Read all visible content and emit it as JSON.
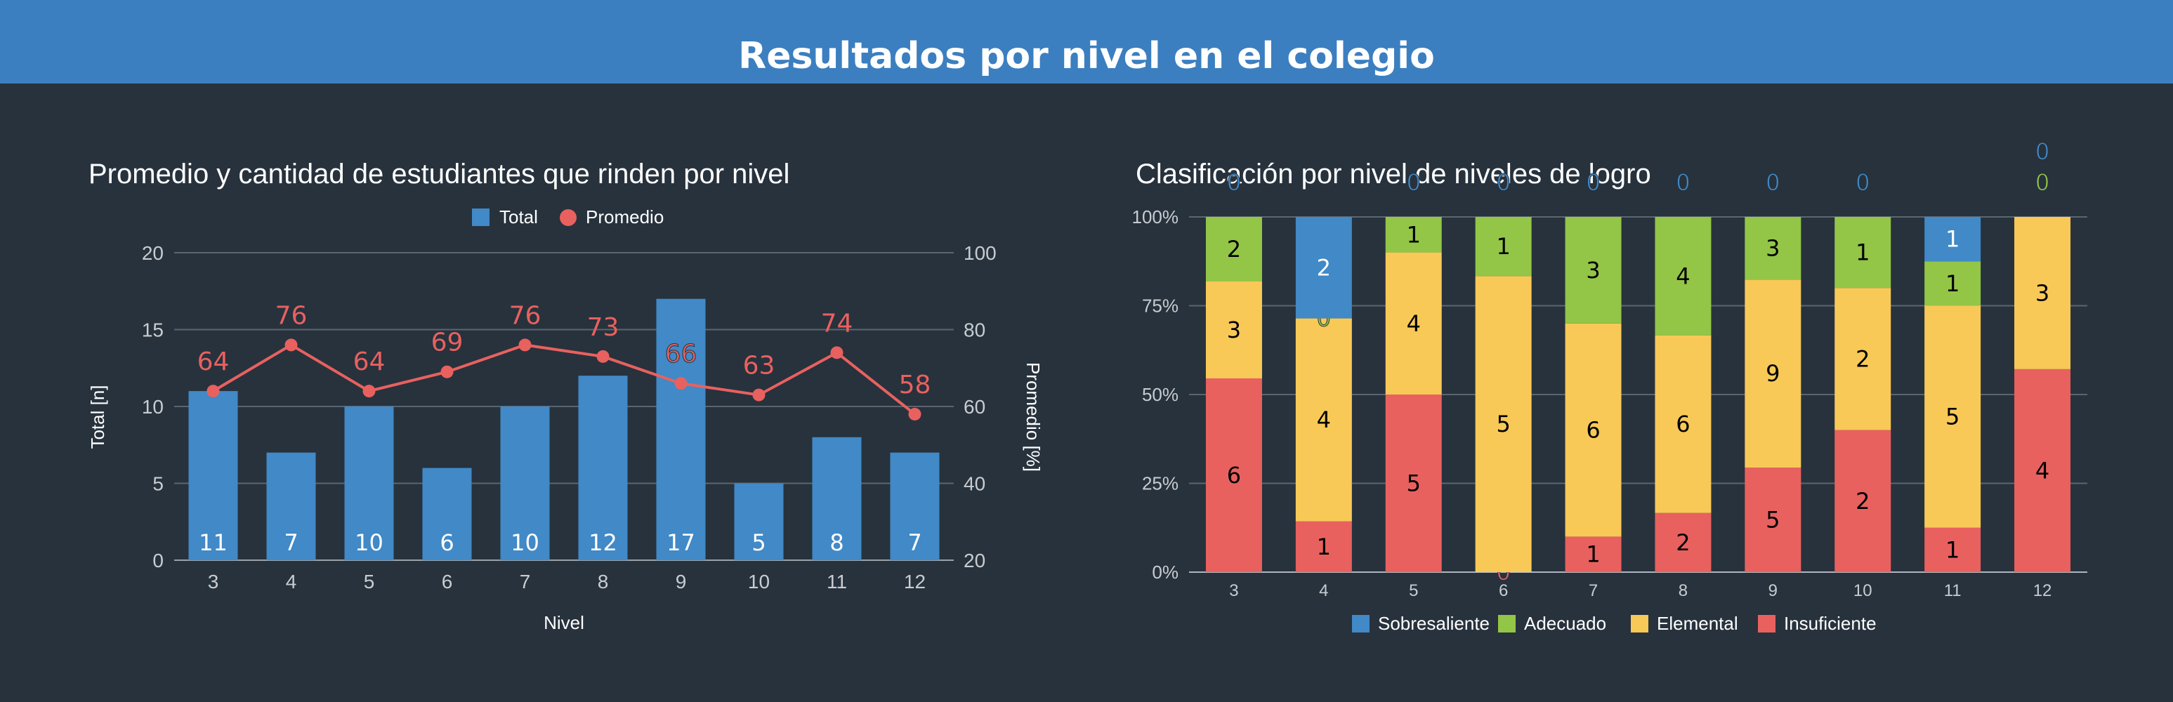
{
  "header": {
    "title": "Resultados por nivel en el colegio"
  },
  "colors": {
    "header_bg": "#3b7fc0",
    "page_bg": "#27323d",
    "blue": "#4189c7",
    "red": "#e8615f",
    "green": "#93c547",
    "yellow": "#f8c957",
    "grid": "#5b6570",
    "text": "#ffffff",
    "tick": "#c8ccd0"
  },
  "chart_data": [
    {
      "type": "bar",
      "title": "Promedio y cantidad de estudiantes que rinden por nivel",
      "xlabel": "Nivel",
      "ylabel": "Total [n]",
      "y2label": "Promedio [%]",
      "categories": [
        "3",
        "4",
        "5",
        "6",
        "7",
        "8",
        "9",
        "10",
        "11",
        "12"
      ],
      "ylim": [
        0,
        20
      ],
      "y_ticks": [
        "0",
        "5",
        "10",
        "15",
        "20"
      ],
      "y2lim": [
        20,
        100
      ],
      "y2_ticks": [
        "20",
        "40",
        "60",
        "80",
        "100"
      ],
      "grid": true,
      "legend_position": "top",
      "series": [
        {
          "name": "Total",
          "type": "bar",
          "axis": "left",
          "color": "#4189c7",
          "values": [
            11,
            7,
            10,
            6,
            10,
            12,
            17,
            5,
            8,
            7
          ]
        },
        {
          "name": "Promedio",
          "type": "line",
          "axis": "right",
          "color": "#e8615f",
          "values": [
            64,
            76,
            64,
            69,
            76,
            73,
            66,
            63,
            74,
            58
          ]
        }
      ]
    },
    {
      "type": "bar",
      "stacked": "percent",
      "title": "Clasificación por nivel de niveles de logro",
      "categories": [
        "3",
        "4",
        "5",
        "6",
        "7",
        "8",
        "9",
        "10",
        "11",
        "12"
      ],
      "y_ticks": [
        "0%",
        "25%",
        "50%",
        "75%",
        "100%"
      ],
      "ylim": [
        0,
        100
      ],
      "grid": true,
      "legend_position": "bottom",
      "series": [
        {
          "name": "Insuficiente",
          "color": "#e8615f",
          "values": [
            6,
            1,
            5,
            0,
            1,
            2,
            5,
            2,
            1,
            4
          ]
        },
        {
          "name": "Elemental",
          "color": "#f8c957",
          "values": [
            3,
            4,
            4,
            5,
            6,
            6,
            9,
            2,
            5,
            3
          ]
        },
        {
          "name": "Adecuado",
          "color": "#93c547",
          "values": [
            2,
            0,
            1,
            1,
            3,
            4,
            3,
            1,
            1,
            0
          ]
        },
        {
          "name": "Sobresaliente",
          "color": "#4189c7",
          "values": [
            0,
            2,
            0,
            0,
            0,
            0,
            0,
            0,
            1,
            0
          ]
        }
      ],
      "legend_order": [
        "Sobresaliente",
        "Adecuado",
        "Elemental",
        "Insuficiente"
      ]
    }
  ]
}
